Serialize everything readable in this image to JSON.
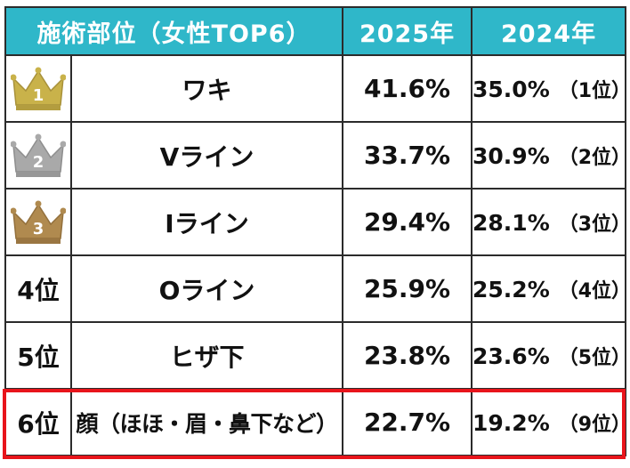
{
  "table": {
    "headers": {
      "part": "施術部位（女性TOP6）",
      "y2025": "2025年",
      "y2024": "2024年"
    },
    "rows": [
      {
        "rank": "1",
        "crown": "gold-crown-icon",
        "part": "ワキ",
        "v2025": "41.6%",
        "v2024": "35.0%",
        "prev_rank": "（1位）"
      },
      {
        "rank": "2",
        "crown": "silver-crown-icon",
        "part": "Vライン",
        "v2025": "33.7%",
        "v2024": "30.9%",
        "prev_rank": "（2位）"
      },
      {
        "rank": "3",
        "crown": "bronze-crown-icon",
        "part": "Iライン",
        "v2025": "29.4%",
        "v2024": "28.1%",
        "prev_rank": "（3位）"
      },
      {
        "rank": "4位",
        "part": "Oライン",
        "v2025": "25.9%",
        "v2024": "25.2%",
        "prev_rank": "（4位）"
      },
      {
        "rank": "5位",
        "part": "ヒザ下",
        "v2025": "23.8%",
        "v2024": "23.6%",
        "prev_rank": "（5位）"
      },
      {
        "rank": "6位",
        "part": "顔（ほほ・眉・鼻下など）",
        "v2025": "22.7%",
        "v2024": "19.2%",
        "prev_rank": "（9位）",
        "highlighted": true
      }
    ]
  },
  "colors": {
    "header_bg": "#2fb7c9",
    "header_text": "#ffffff",
    "gold": "#c9b24a",
    "silver": "#a9a9a9",
    "bronze": "#b08a4f",
    "highlight_border": "#e8141b",
    "prev_year_text": "#8a8a8a"
  },
  "chart_data": {
    "type": "table",
    "title": "施術部位（女性TOP6）",
    "columns": [
      "施術部位（女性TOP6）",
      "2025年",
      "2024年"
    ],
    "categories": [
      "ワキ",
      "Vライン",
      "Iライン",
      "Oライン",
      "ヒザ下",
      "顔（ほほ・眉・鼻下など）"
    ],
    "series": [
      {
        "name": "2025年",
        "values": [
          41.6,
          33.7,
          29.4,
          25.9,
          23.8,
          22.7
        ]
      },
      {
        "name": "2024年",
        "values": [
          35.0,
          30.9,
          28.1,
          25.2,
          23.6,
          19.2
        ]
      }
    ],
    "ranks_2025": [
      1,
      2,
      3,
      4,
      5,
      6
    ],
    "ranks_2024": [
      1,
      2,
      3,
      4,
      5,
      9
    ],
    "highlighted_row": 6
  }
}
